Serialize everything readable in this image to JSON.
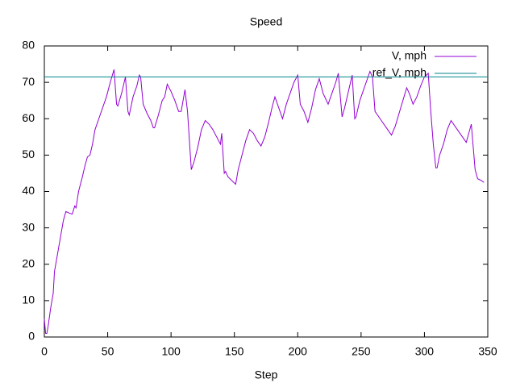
{
  "chart_data": {
    "type": "line",
    "title": "Speed",
    "x_label": "Step",
    "xlim": [
      0,
      350
    ],
    "xticks": [
      0,
      50,
      100,
      150,
      200,
      250,
      300,
      350
    ],
    "ylim": [
      0,
      80
    ],
    "yticks": [
      0,
      10,
      20,
      30,
      40,
      50,
      60,
      70,
      80
    ],
    "legend": "top-right",
    "grid": false,
    "series": [
      {
        "name": "V, mph",
        "color": "#9400d3",
        "x": [
          0,
          1,
          2,
          3,
          5,
          7,
          8,
          10,
          13,
          15,
          17,
          20,
          22,
          24,
          25,
          27,
          30,
          32,
          34,
          36,
          38,
          40,
          43,
          46,
          49,
          52,
          55,
          57,
          58,
          61,
          64,
          66,
          67,
          70,
          73,
          75,
          76,
          78,
          81,
          84,
          86,
          87,
          90,
          93,
          95,
          97,
          100,
          103,
          106,
          108,
          110,
          111,
          113,
          116,
          118,
          121,
          124,
          127,
          130,
          133,
          136,
          139,
          140,
          142,
          143,
          145,
          148,
          151,
          153,
          156,
          159,
          162,
          165,
          168,
          171,
          174,
          177,
          180,
          182,
          184,
          186,
          188,
          191,
          194,
          197,
          200,
          202,
          205,
          208,
          211,
          214,
          217,
          220,
          224,
          227,
          230,
          232,
          235,
          237,
          240,
          243,
          245,
          246,
          249,
          252,
          255,
          257,
          259,
          261,
          263,
          266,
          269,
          272,
          274,
          277,
          280,
          283,
          286,
          288,
          291,
          294,
          297,
          300,
          303,
          305,
          307,
          309,
          310,
          312,
          315,
          318,
          321,
          324,
          327,
          330,
          333,
          337,
          340,
          342,
          345,
          347
        ],
        "values": [
          5,
          1,
          1,
          3,
          8,
          12,
          18,
          22,
          28,
          32,
          34.5,
          34,
          33.8,
          36,
          35.5,
          40,
          44,
          47,
          49.5,
          50,
          53,
          57,
          60,
          63,
          66,
          70,
          73.5,
          64,
          63.5,
          67,
          71.5,
          62,
          61,
          66,
          69,
          72,
          71.5,
          64,
          61.5,
          59.5,
          57.5,
          57.5,
          61,
          65,
          66,
          69.5,
          67.5,
          65,
          62,
          62,
          66,
          68,
          62,
          46,
          48,
          52,
          57,
          59.5,
          58.5,
          57,
          55,
          53,
          56,
          45,
          45.5,
          44,
          43,
          42,
          46,
          50,
          54,
          57,
          56,
          54,
          52.5,
          55,
          59,
          63.5,
          66,
          64,
          62,
          60,
          64,
          67,
          70,
          72,
          64,
          62,
          59,
          63,
          68,
          71,
          67,
          64,
          67,
          70,
          72.5,
          60.5,
          63,
          67.5,
          72,
          60,
          60.5,
          65,
          68,
          71,
          73,
          71.5,
          62,
          61,
          59.5,
          58,
          56.5,
          55.5,
          58,
          61.5,
          65,
          68.5,
          67,
          64,
          66,
          69,
          71.5,
          72.5,
          62,
          53,
          46.5,
          46.5,
          50,
          53,
          57,
          59.5,
          58,
          56.5,
          55,
          53.5,
          58.5,
          46,
          43.5,
          43,
          42.5
        ]
      },
      {
        "name": "ref_V, mph",
        "color": "#00868b",
        "x": [
          0,
          350
        ],
        "values": [
          71.5,
          71.5
        ]
      }
    ]
  }
}
